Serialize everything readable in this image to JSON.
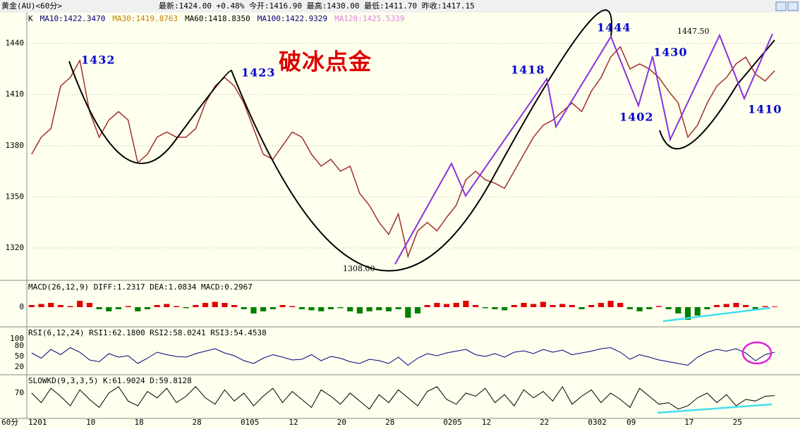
{
  "header": {
    "symbol": "黄金(AU)<60分>",
    "quote": "最新:1424.00 +0.48%  今开:1416.90  最高:1430.00  最低:1411.70  昨收:1417.15"
  },
  "legend": [
    {
      "text": "K",
      "color": "#000000"
    },
    {
      "text": "MA10:1422.3470",
      "color": "#000080"
    },
    {
      "text": "MA30:1419.8763",
      "color": "#c08000"
    },
    {
      "text": "MA60:1418.8350",
      "color": "#000000"
    },
    {
      "text": "MA100:1422.9329",
      "color": "#000080"
    },
    {
      "text": "MA120:1425.5339",
      "color": "#e080e0"
    }
  ],
  "annotations": [
    {
      "text": "1432",
      "color": "#0000cc"
    },
    {
      "text": "1423",
      "color": "#0000cc"
    },
    {
      "text": "1418",
      "color": "#0000cc"
    },
    {
      "text": "1444",
      "color": "#0000cc"
    },
    {
      "text": "1430",
      "color": "#0000cc"
    },
    {
      "text": "1402",
      "color": "#0000cc"
    },
    {
      "text": "1410",
      "color": "#0000cc"
    },
    {
      "text": "1447.50",
      "color": "#000000"
    },
    {
      "text": "1308.00",
      "color": "#000000"
    },
    {
      "text": "破冰点金",
      "color": "#dd0000"
    }
  ],
  "period": "60分",
  "chart_data": [
    {
      "type": "line",
      "color": "#a0302a",
      "grid": true,
      "categories": [
        "1201",
        null,
        null,
        null,
        null,
        null,
        "10",
        null,
        null,
        null,
        null,
        "18",
        null,
        null,
        null,
        null,
        null,
        "28",
        null,
        null,
        null,
        null,
        "0105",
        null,
        null,
        null,
        null,
        "12",
        null,
        null,
        null,
        null,
        "20",
        null,
        null,
        null,
        null,
        "28",
        null,
        null,
        null,
        null,
        null,
        "0205",
        null,
        null,
        null,
        "12",
        null,
        null,
        null,
        null,
        null,
        "22",
        null,
        null,
        null,
        null,
        "0302",
        null,
        null,
        null,
        "09",
        null,
        null,
        null,
        null,
        null,
        "17",
        null,
        null,
        null,
        null,
        "25",
        null,
        null,
        null,
        null
      ],
      "values": [
        1375,
        1385,
        1390,
        1415,
        1420,
        1430,
        1400,
        1385,
        1395,
        1400,
        1395,
        1370,
        1375,
        1385,
        1388,
        1385,
        1385,
        1390,
        1405,
        1415,
        1420,
        1415,
        1405,
        1390,
        1375,
        1372,
        1380,
        1388,
        1385,
        1375,
        1368,
        1372,
        1365,
        1368,
        1352,
        1345,
        1335,
        1328,
        1340,
        1315,
        1330,
        1335,
        1330,
        1338,
        1345,
        1360,
        1365,
        1360,
        1358,
        1355,
        1365,
        1375,
        1385,
        1392,
        1395,
        1400,
        1405,
        1400,
        1412,
        1420,
        1432,
        1438,
        1425,
        1428,
        1425,
        1420,
        1412,
        1405,
        1385,
        1392,
        1405,
        1415,
        1420,
        1428,
        1432,
        1422,
        1418,
        1424
      ],
      "ylim": [
        1301,
        1451
      ],
      "yticks": [
        1320,
        1350,
        1380,
        1410,
        1440
      ]
    },
    {
      "type": "bar",
      "title": "MACD(26,12,9) DIFF:1.2317 DEA:1.0834 MACD:0.2967",
      "up_color": "#e00000",
      "down_color": "#008000",
      "values": [
        1,
        1.5,
        2,
        1,
        0.5,
        3,
        2,
        -1,
        -2,
        -1,
        0.5,
        -2,
        -1,
        1,
        1.5,
        0.5,
        -0.5,
        1,
        2,
        2.5,
        2,
        1,
        -1,
        -3,
        -2,
        -1,
        1,
        0.5,
        -1,
        -1.5,
        -2,
        -1,
        -0.5,
        -2,
        -3,
        -2,
        -1.5,
        -2,
        -1,
        -5,
        -3,
        1,
        2,
        1.5,
        2,
        3,
        1,
        -0.5,
        -1,
        -1.5,
        1,
        2,
        1.5,
        2.5,
        1,
        1.5,
        1,
        -1,
        1,
        2,
        3,
        2,
        -1,
        -2,
        -1,
        0.5,
        -1,
        -3,
        -6,
        -4,
        -1,
        1,
        1.5,
        2,
        1,
        -1,
        0.5,
        0.3
      ],
      "ylim": [
        -9,
        12
      ],
      "yticks": [
        0
      ]
    },
    {
      "type": "line",
      "title": "RSI(6,12,24) RSI1:62.1800 RSI2:58.0241 RSI3:54.4538",
      "color": "#000080",
      "values": [
        60,
        45,
        70,
        55,
        75,
        62,
        40,
        35,
        58,
        48,
        52,
        30,
        45,
        62,
        55,
        50,
        48,
        58,
        65,
        72,
        60,
        52,
        38,
        30,
        45,
        55,
        48,
        40,
        42,
        55,
        38,
        50,
        45,
        35,
        30,
        42,
        38,
        30,
        48,
        25,
        45,
        58,
        52,
        60,
        65,
        70,
        55,
        50,
        58,
        48,
        62,
        66,
        58,
        70,
        62,
        68,
        55,
        60,
        65,
        72,
        75,
        62,
        42,
        55,
        48,
        40,
        35,
        30,
        25,
        48,
        62,
        70,
        65,
        72,
        60,
        38,
        55,
        62
      ],
      "ylim": [
        0,
        128
      ],
      "yticks": [
        20,
        50,
        80,
        100
      ]
    },
    {
      "type": "line",
      "title": "SLOWKD(9,3,3,5) K:61.9024 D:59.8128",
      "color": "#000000",
      "values": [
        70,
        40,
        85,
        60,
        30,
        80,
        50,
        25,
        70,
        90,
        45,
        30,
        75,
        55,
        85,
        40,
        60,
        90,
        55,
        35,
        80,
        45,
        70,
        30,
        60,
        85,
        40,
        75,
        50,
        25,
        80,
        60,
        35,
        70,
        45,
        20,
        65,
        40,
        80,
        55,
        30,
        75,
        90,
        50,
        35,
        70,
        60,
        85,
        40,
        65,
        30,
        80,
        55,
        75,
        45,
        90,
        35,
        60,
        80,
        40,
        70,
        50,
        25,
        85,
        60,
        35,
        40,
        20,
        30,
        55,
        70,
        40,
        65,
        30,
        50,
        45,
        60,
        62
      ],
      "ylim": [
        -5,
        125
      ],
      "yticks": [
        70
      ]
    }
  ]
}
